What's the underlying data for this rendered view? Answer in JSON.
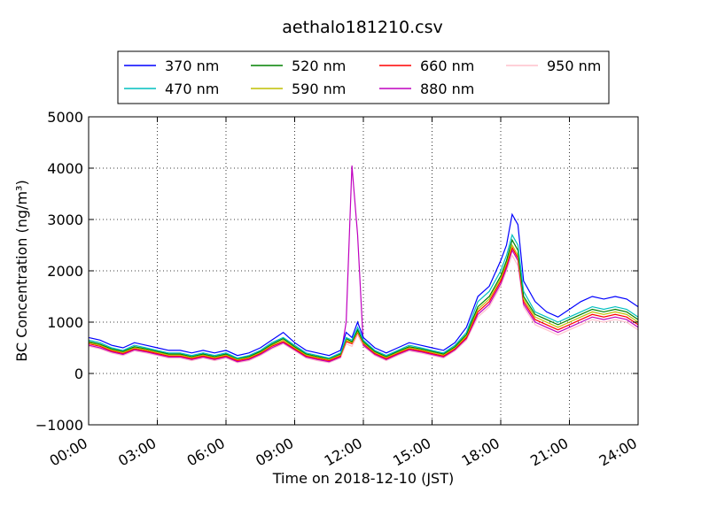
{
  "chart_data": {
    "type": "line",
    "title": "aethalo181210.csv",
    "xlabel": "Time on 2018-12-10 (JST)",
    "ylabel": "BC Concentration (ng/m³)",
    "xlim": [
      "00:00",
      "24:00"
    ],
    "ylim": [
      -1000,
      5000
    ],
    "xticks": [
      "00:00",
      "03:00",
      "06:00",
      "09:00",
      "12:00",
      "15:00",
      "18:00",
      "21:00",
      "24:00"
    ],
    "yticks": [
      "−1000",
      "0",
      "1000",
      "2000",
      "3000",
      "4000",
      "5000"
    ],
    "grid": true,
    "legend_position": "top-center",
    "x_hours": [
      0,
      0.5,
      1,
      1.5,
      2,
      2.5,
      3,
      3.5,
      4,
      4.5,
      5,
      5.5,
      6,
      6.5,
      7,
      7.5,
      8,
      8.5,
      9,
      9.5,
      10,
      10.5,
      11,
      11.25,
      11.5,
      11.75,
      12,
      12.5,
      13,
      13.5,
      14,
      14.5,
      15,
      15.5,
      16,
      16.5,
      17,
      17.5,
      18,
      18.25,
      18.5,
      18.75,
      19,
      19.5,
      20,
      20.5,
      21,
      21.5,
      22,
      22.5,
      23,
      23.5,
      24
    ],
    "series": [
      {
        "name": "370 nm",
        "color": "#0000ff",
        "values": [
          700,
          650,
          550,
          500,
          600,
          550,
          500,
          450,
          450,
          400,
          450,
          400,
          450,
          350,
          400,
          500,
          650,
          800,
          600,
          450,
          400,
          350,
          450,
          800,
          700,
          1000,
          700,
          500,
          400,
          500,
          600,
          550,
          500,
          450,
          600,
          900,
          1500,
          1700,
          2200,
          2500,
          3100,
          2900,
          1800,
          1400,
          1200,
          1100,
          1250,
          1400,
          1500,
          1450,
          1500,
          1450,
          1300
        ]
      },
      {
        "name": "470 nm",
        "color": "#00bfbf",
        "values": [
          650,
          600,
          500,
          450,
          550,
          500,
          450,
          400,
          400,
          350,
          400,
          350,
          400,
          300,
          350,
          450,
          600,
          700,
          550,
          400,
          350,
          300,
          400,
          700,
          650,
          900,
          650,
          450,
          350,
          450,
          550,
          500,
          450,
          400,
          550,
          800,
          1400,
          1600,
          2000,
          2300,
          2700,
          2500,
          1600,
          1200,
          1100,
          1000,
          1100,
          1200,
          1300,
          1250,
          1300,
          1250,
          1100
        ]
      },
      {
        "name": "520 nm",
        "color": "#008000",
        "values": [
          620,
          570,
          480,
          430,
          520,
          480,
          430,
          380,
          380,
          330,
          380,
          330,
          380,
          290,
          330,
          430,
          570,
          680,
          520,
          380,
          330,
          290,
          380,
          680,
          620,
          850,
          620,
          430,
          330,
          430,
          520,
          480,
          430,
          380,
          520,
          760,
          1300,
          1500,
          1900,
          2200,
          2600,
          2400,
          1500,
          1150,
          1050,
          950,
          1050,
          1150,
          1250,
          1200,
          1250,
          1200,
          1050
        ]
      },
      {
        "name": "590 nm",
        "color": "#bfbf00",
        "values": [
          600,
          550,
          460,
          410,
          500,
          460,
          410,
          360,
          360,
          310,
          360,
          310,
          360,
          270,
          310,
          410,
          550,
          650,
          500,
          360,
          310,
          270,
          360,
          650,
          600,
          820,
          600,
          410,
          310,
          410,
          500,
          460,
          410,
          360,
          500,
          730,
          1250,
          1450,
          1850,
          2150,
          2500,
          2300,
          1450,
          1100,
          1000,
          900,
          1000,
          1100,
          1200,
          1150,
          1200,
          1150,
          1000
        ]
      },
      {
        "name": "660 nm",
        "color": "#ff0000",
        "values": [
          580,
          530,
          440,
          390,
          480,
          440,
          390,
          340,
          340,
          290,
          340,
          290,
          340,
          250,
          290,
          390,
          530,
          620,
          480,
          340,
          290,
          250,
          340,
          620,
          580,
          800,
          580,
          390,
          290,
          390,
          480,
          440,
          390,
          340,
          480,
          700,
          1200,
          1400,
          1800,
          2100,
          2450,
          2250,
          1400,
          1050,
          950,
          850,
          950,
          1050,
          1150,
          1100,
          1150,
          1100,
          950
        ]
      },
      {
        "name": "880 nm",
        "color": "#bf00bf",
        "values": [
          550,
          500,
          420,
          370,
          460,
          420,
          370,
          320,
          320,
          270,
          320,
          270,
          320,
          230,
          270,
          370,
          500,
          600,
          460,
          320,
          270,
          230,
          320,
          1000,
          4050,
          2700,
          550,
          370,
          270,
          370,
          460,
          420,
          370,
          320,
          460,
          680,
          1150,
          1350,
          1750,
          2050,
          2400,
          2200,
          1350,
          1000,
          900,
          800,
          900,
          1000,
          1100,
          1050,
          1100,
          1050,
          900
        ]
      },
      {
        "name": "950 nm",
        "color": "#ffc0cb",
        "values": [
          530,
          480,
          400,
          350,
          440,
          400,
          350,
          300,
          300,
          250,
          300,
          250,
          300,
          210,
          250,
          350,
          480,
          580,
          440,
          300,
          250,
          210,
          300,
          580,
          530,
          750,
          530,
          350,
          250,
          350,
          440,
          400,
          350,
          300,
          440,
          650,
          1100,
          1300,
          1700,
          2000,
          2300,
          2100,
          1300,
          950,
          850,
          750,
          850,
          950,
          1050,
          1000,
          1050,
          1000,
          850
        ]
      }
    ]
  }
}
